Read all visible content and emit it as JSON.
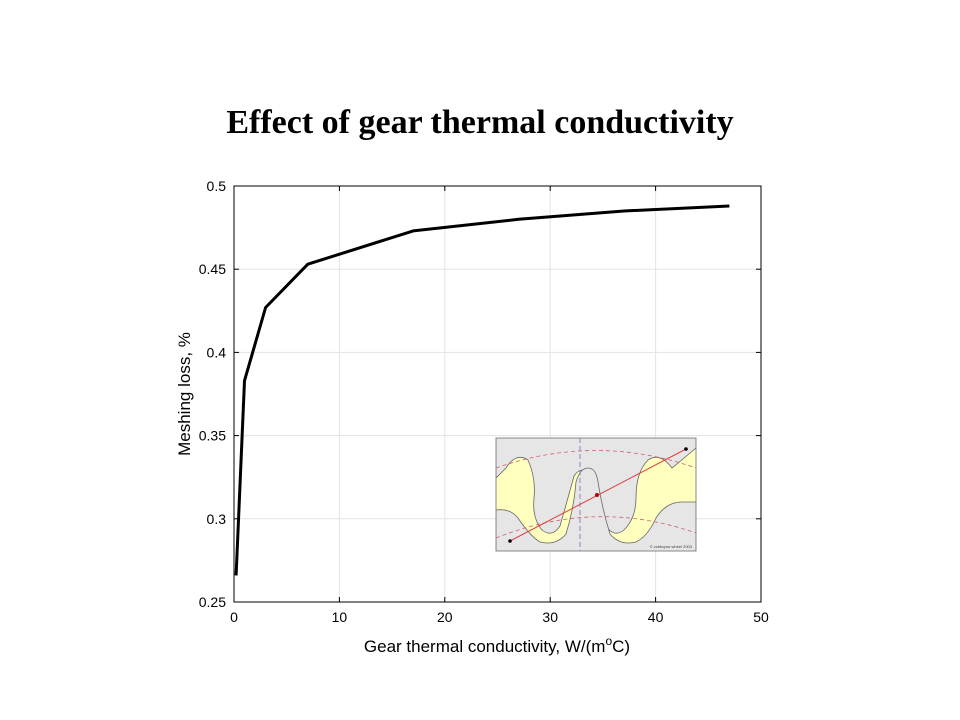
{
  "slide": {
    "title": "Effect of gear thermal conductivity"
  },
  "chart_data": {
    "type": "line",
    "title": "",
    "xlabel": "Gear thermal conductivity, W/(m",
    "xlabel_sup": "o",
    "xlabel_end": "C)",
    "ylabel": "Meshing loss, %",
    "xlim": [
      0,
      50
    ],
    "ylim": [
      0.25,
      0.5
    ],
    "xticks": [
      0,
      10,
      20,
      30,
      40,
      50
    ],
    "yticks": [
      0.25,
      0.3,
      0.35,
      0.4,
      0.45,
      0.5
    ],
    "xtick_labels": [
      "0",
      "10",
      "20",
      "30",
      "40",
      "50"
    ],
    "ytick_labels": [
      "0.25",
      "0.3",
      "0.35",
      "0.4",
      "0.45",
      "0.5"
    ],
    "grid": true,
    "legend": "none",
    "series": [
      {
        "x": [
          0.2,
          1,
          3,
          7,
          17,
          27,
          37,
          47
        ],
        "y": [
          0.266,
          0.383,
          0.427,
          0.453,
          0.473,
          0.48,
          0.485,
          0.488
        ],
        "color": "#000000"
      }
    ]
  },
  "inset": {
    "description_icon": "gear-mesh-icon",
    "background": "#ffffc0",
    "caption": "© zzbbcpss wheel 2003"
  }
}
